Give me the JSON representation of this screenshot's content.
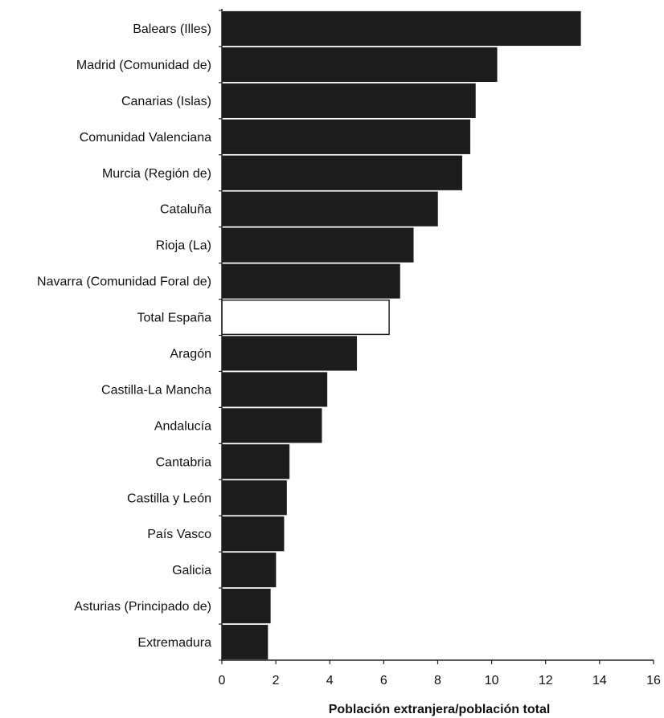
{
  "chart_data": {
    "type": "bar",
    "orientation": "horizontal",
    "categories": [
      "Balears (Illes)",
      "Madrid (Comunidad de)",
      "Canarias (Islas)",
      "Comunidad Valenciana",
      "Murcia (Región de)",
      "Cataluña",
      "Rioja (La)",
      "Navarra (Comunidad Foral de)",
      "Total España",
      "Aragón",
      "Castilla-La Mancha",
      "Andalucía",
      "Cantabria",
      "Castilla y León",
      "País Vasco",
      "Galicia",
      "Asturias (Principado de)",
      "Extremadura"
    ],
    "values": [
      13.3,
      10.2,
      9.4,
      9.2,
      8.9,
      8.0,
      7.1,
      6.6,
      6.2,
      5.0,
      3.9,
      3.7,
      2.5,
      2.4,
      2.3,
      2.0,
      1.8,
      1.7
    ],
    "highlight_category": "Total España",
    "colors": {
      "bar": "#1c1c1c",
      "highlight": "#ffffff",
      "outline": "#222222"
    },
    "xlabel": "Población extranjera/población total",
    "ylabel": "",
    "xlim": [
      0,
      16
    ],
    "xticks": [
      "0",
      "2",
      "4",
      "6",
      "8",
      "10",
      "12",
      "14",
      "16"
    ],
    "grid": false,
    "legend": "none"
  }
}
